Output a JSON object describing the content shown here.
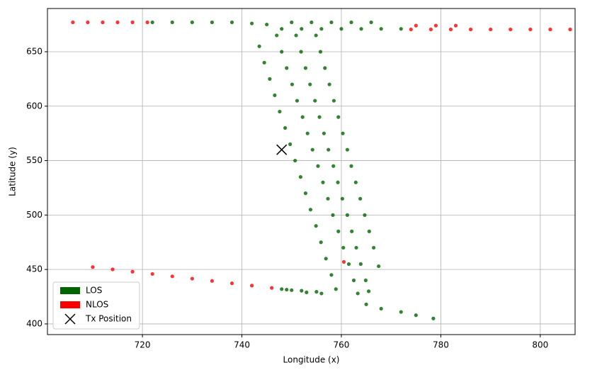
{
  "chart_data": {
    "type": "scatter",
    "x_label": "Longitude (x)",
    "y_label": "Latitude (y)",
    "xlim": [
      700.9,
      807.0
    ],
    "ylim": [
      390.2,
      689.7
    ],
    "xticks": [
      720,
      740,
      760,
      780,
      800
    ],
    "yticks": [
      400,
      450,
      500,
      550,
      600,
      650
    ],
    "grid": true,
    "legend": "lower left",
    "series": [
      {
        "name": "LOS",
        "color": "#006400",
        "marker": "patch",
        "x": [
          743.5,
          744.5,
          745.6,
          746.6,
          747.6,
          748.7,
          749.7,
          750.7,
          751.8,
          752.8,
          753.8,
          754.9,
          755.9,
          756.9,
          758.0,
          758.9,
          756,
          753,
          750,
          748,
          747.0,
          748.0,
          749.0,
          750.1,
          751.1,
          752.2,
          753.2,
          754.2,
          755.3,
          756.3,
          757.3,
          758.3,
          759.4,
          760.4,
          761.5,
          762.5,
          763.3,
          765,
          768,
          772,
          775,
          778.5,
          750.9,
          751.9,
          752.8,
          753.7,
          754.7,
          755.6,
          756.5,
          757.4,
          758.4,
          759.3,
          760.2,
          761.2,
          762.1,
          763.0,
          763.9,
          764.9,
          765.5,
          754.9,
          755.8,
          756.7,
          757.6,
          758.5,
          759.4,
          760.3,
          761.2,
          762.0,
          762.9,
          763.8,
          764.7,
          765.6,
          766.5,
          767.5,
          722,
          726,
          730,
          734,
          738,
          742,
          745,
          750,
          754,
          758,
          762,
          766,
          748,
          752,
          756,
          760,
          764,
          768,
          772,
          749,
          752,
          755
        ],
        "values": [
          655,
          640,
          625,
          610,
          595,
          580,
          565,
          550,
          535,
          520,
          505,
          490,
          475,
          460,
          445,
          432,
          428,
          429,
          431,
          432,
          665,
          650,
          635,
          620,
          605,
          590,
          575,
          560,
          545,
          530,
          515,
          500,
          485,
          470,
          455,
          440,
          428,
          418,
          414,
          411,
          408,
          405,
          665,
          650,
          635,
          620,
          605,
          590,
          575,
          560,
          545,
          530,
          515,
          500,
          485,
          470,
          455,
          440,
          430,
          665,
          650,
          635,
          620,
          605,
          590,
          575,
          560,
          545,
          530,
          515,
          500,
          485,
          470,
          453,
          677,
          677,
          677,
          677,
          677,
          676,
          675,
          677,
          677,
          677,
          677,
          677,
          671,
          671,
          671,
          671,
          671,
          671,
          671,
          431.5,
          430.5,
          429.5
        ]
      },
      {
        "name": "NLOS",
        "color": "#ff0000",
        "marker": "patch",
        "x": [
          706,
          709,
          712,
          715,
          718,
          721,
          774,
          778,
          782,
          786,
          790,
          794,
          798,
          802,
          806,
          775,
          779,
          783,
          710,
          714,
          718,
          722,
          726,
          730,
          734,
          738,
          742,
          746,
          760.5
        ],
        "values": [
          677,
          677,
          677,
          677,
          677,
          677,
          670.5,
          670.5,
          670.5,
          670.5,
          670.5,
          670.5,
          670.5,
          670.5,
          670.5,
          674,
          674,
          674,
          452.2,
          450.1,
          448.0,
          445.9,
          443.7,
          441.6,
          439.5,
          437.3,
          435.2,
          433.1,
          457
        ]
      },
      {
        "name": "Tx Position",
        "color": "#000000",
        "marker": "x",
        "x": [
          748
        ],
        "values": [
          560
        ]
      }
    ]
  }
}
